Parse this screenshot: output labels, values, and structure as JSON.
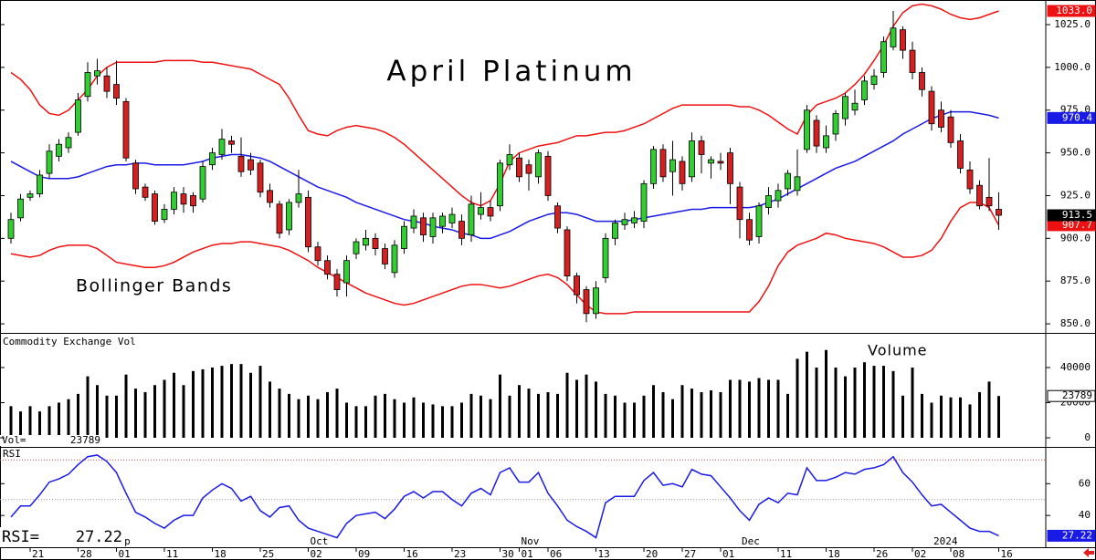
{
  "chart_data": [
    {
      "type": "candlestick",
      "title": "April Platinum",
      "annotation": "Bollinger Bands",
      "categories": [
        null,
        null,
        "21",
        null,
        null,
        null,
        null,
        "28",
        null,
        null,
        null,
        "01",
        null,
        null,
        null,
        null,
        "11",
        null,
        null,
        null,
        null,
        "18",
        null,
        null,
        null,
        null,
        "25",
        null,
        null,
        null,
        null,
        "02",
        null,
        null,
        null,
        null,
        "09",
        null,
        null,
        null,
        null,
        "16",
        null,
        null,
        null,
        null,
        "23",
        null,
        null,
        null,
        null,
        "30",
        null,
        "01",
        null,
        null,
        "06",
        null,
        null,
        null,
        null,
        "13",
        null,
        null,
        null,
        null,
        "20",
        null,
        null,
        null,
        "27",
        null,
        null,
        null,
        "01",
        null,
        null,
        null,
        null,
        null,
        "11",
        null,
        null,
        null,
        null,
        "18",
        null,
        null,
        null,
        null,
        "26",
        null,
        null,
        null,
        "02",
        null,
        null,
        null,
        "08",
        null,
        null,
        null,
        null,
        "16"
      ],
      "months": [
        null,
        null,
        null,
        null,
        null,
        null,
        null,
        null,
        null,
        null,
        null,
        "ep",
        null,
        null,
        null,
        null,
        null,
        null,
        null,
        null,
        null,
        null,
        null,
        null,
        null,
        null,
        null,
        null,
        null,
        null,
        null,
        "Oct",
        null,
        null,
        null,
        null,
        null,
        null,
        null,
        null,
        null,
        null,
        null,
        null,
        null,
        null,
        null,
        null,
        null,
        null,
        null,
        null,
        null,
        "Nov",
        null,
        null,
        null,
        null,
        null,
        null,
        null,
        null,
        null,
        null,
        null,
        null,
        null,
        null,
        null,
        null,
        null,
        null,
        null,
        null,
        null,
        null,
        "Dec",
        null,
        null,
        null,
        null,
        null,
        null,
        null,
        null,
        null,
        null,
        null,
        null,
        null,
        null,
        null,
        null,
        null,
        null,
        null,
        "2024",
        null,
        null,
        null,
        null,
        null,
        null,
        null,
        null,
        null
      ],
      "open": [
        900,
        912,
        924,
        926,
        938,
        948,
        953,
        962,
        983,
        995,
        995,
        990,
        980,
        944,
        930,
        926,
        911,
        917,
        926,
        925,
        923,
        943,
        949,
        957,
        948,
        946,
        944,
        928,
        920,
        905,
        921,
        924,
        895,
        887,
        879,
        874,
        891,
        896,
        900,
        894,
        880,
        894,
        906,
        912,
        901,
        907,
        909,
        910,
        902,
        914,
        918,
        919,
        943,
        947,
        943,
        936,
        948,
        919,
        905,
        878,
        870,
        856,
        877,
        900,
        908,
        909,
        910,
        932,
        952,
        939,
        945,
        936,
        957,
        944,
        945,
        950,
        930,
        911,
        901,
        918,
        922,
        929,
        928,
        952,
        969,
        953,
        961,
        970,
        975,
        981,
        990,
        997,
        1012,
        1022,
        1010,
        997,
        986,
        975,
        971,
        957,
        940,
        931,
        924,
        917
      ],
      "high": [
        915,
        926,
        928,
        940,
        955,
        958,
        962,
        985,
        1003,
        1005,
        1000,
        1004,
        982,
        946,
        932,
        928,
        920,
        930,
        930,
        927,
        945,
        953,
        964,
        960,
        959,
        950,
        946,
        932,
        922,
        923,
        940,
        928,
        898,
        890,
        882,
        890,
        900,
        905,
        903,
        897,
        899,
        910,
        917,
        915,
        915,
        915,
        918,
        914,
        925,
        927,
        922,
        946,
        955,
        950,
        946,
        952,
        951,
        921,
        907,
        880,
        872,
        875,
        903,
        911,
        915,
        916,
        934,
        954,
        955,
        957,
        948,
        962,
        960,
        948,
        950,
        953,
        933,
        915,
        921,
        930,
        932,
        940,
        952,
        978,
        972,
        966,
        975,
        985,
        987,
        995,
        999,
        1018,
        1033,
        1024,
        1015,
        1000,
        989,
        980,
        975,
        961,
        945,
        934,
        947,
        927
      ],
      "low": [
        897,
        910,
        922,
        924,
        935,
        945,
        950,
        960,
        980,
        990,
        982,
        978,
        945,
        926,
        922,
        908,
        909,
        914,
        915,
        915,
        921,
        940,
        946,
        950,
        936,
        937,
        924,
        918,
        900,
        902,
        918,
        892,
        884,
        876,
        866,
        866,
        888,
        893,
        890,
        882,
        877,
        891,
        903,
        898,
        897,
        903,
        906,
        896,
        898,
        911,
        910,
        916,
        940,
        933,
        928,
        932,
        922,
        903,
        875,
        862,
        851,
        853,
        874,
        896,
        905,
        906,
        906,
        929,
        933,
        925,
        928,
        933,
        938,
        935,
        940,
        920,
        900,
        896,
        897,
        914,
        918,
        925,
        925,
        950,
        950,
        950,
        957,
        966,
        972,
        978,
        987,
        994,
        1010,
        1005,
        993,
        983,
        963,
        962,
        953,
        938,
        926,
        917,
        916,
        905
      ],
      "close": [
        911,
        923,
        926,
        937,
        951,
        955,
        959,
        981,
        997,
        998,
        986,
        982,
        947,
        929,
        924,
        910,
        917,
        927,
        920,
        919,
        942,
        950,
        958,
        955,
        939,
        940,
        927,
        921,
        903,
        921,
        926,
        895,
        887,
        879,
        870,
        887,
        898,
        900,
        894,
        885,
        896,
        907,
        913,
        902,
        912,
        913,
        914,
        900,
        920,
        918,
        913,
        944,
        949,
        936,
        938,
        950,
        925,
        906,
        878,
        867,
        856,
        871,
        900,
        909,
        911,
        912,
        932,
        952,
        936,
        946,
        932,
        957,
        949,
        946,
        944,
        932,
        911,
        899,
        919,
        925,
        928,
        938,
        936,
        975,
        954,
        960,
        973,
        983,
        979,
        992,
        995,
        1015,
        1023,
        1010,
        997,
        987,
        967,
        965,
        956,
        941,
        929,
        919,
        919,
        913.5
      ],
      "up_color": "#33cc33",
      "down_color": "#d42020",
      "close_box_color": "#000000",
      "upper_band": {
        "color": "#ee1111",
        "last_label": "1033.0",
        "values": [
          997,
          993,
          987,
          978,
          973,
          972,
          975,
          981,
          987,
          995,
          1000,
          1003,
          1003,
          1003,
          1003,
          1003,
          1004,
          1004,
          1004,
          1004,
          1003,
          1003,
          1002,
          1001,
          1000,
          999,
          996,
          993,
          990,
          982,
          972,
          963,
          961,
          960,
          963,
          965,
          966,
          965,
          964,
          962,
          959,
          955,
          950,
          945,
          940,
          935,
          930,
          925,
          921,
          919,
          922,
          932,
          945,
          950,
          952,
          954,
          955,
          956,
          958,
          960,
          960,
          961,
          962,
          962,
          963,
          965,
          967,
          970,
          973,
          976,
          978,
          978,
          978,
          978,
          978,
          978,
          977,
          977,
          975,
          972,
          968,
          964,
          961,
          972,
          978,
          980,
          982,
          985,
          990,
          996,
          1004,
          1013,
          1024,
          1032,
          1036,
          1037,
          1036,
          1034,
          1031,
          1029,
          1028,
          1029,
          1031,
          1033
        ]
      },
      "middle_band": {
        "color": "#1a1ae6",
        "values": [
          945,
          942,
          939,
          936,
          935,
          935,
          935,
          936,
          938,
          940,
          942,
          943,
          943,
          944,
          944,
          943,
          943,
          943,
          943,
          944,
          945,
          947,
          948,
          949,
          949,
          948,
          947,
          945,
          942,
          939,
          936,
          933,
          930,
          928,
          926,
          924,
          921,
          919,
          917,
          915,
          913,
          911,
          910,
          909,
          907,
          906,
          905,
          903,
          902,
          900,
          900,
          902,
          904,
          907,
          910,
          912,
          914,
          915,
          915,
          914,
          912,
          910,
          910,
          910,
          910,
          911,
          912,
          913,
          914,
          915,
          916,
          917,
          917,
          918,
          918,
          918,
          918,
          918,
          919,
          921,
          923,
          926,
          929,
          932,
          935,
          938,
          941,
          943,
          945,
          948,
          951,
          954,
          957,
          961,
          964,
          967,
          970,
          972,
          974,
          974,
          974,
          973,
          972,
          970.4
        ]
      },
      "lower_band": {
        "color": "#ee1111",
        "values": [
          891,
          890,
          889,
          890,
          893,
          895,
          896,
          896,
          896,
          894,
          890,
          886,
          885,
          884,
          883,
          883,
          884,
          886,
          889,
          892,
          894,
          896,
          897,
          897,
          898,
          898,
          897,
          896,
          895,
          893,
          890,
          887,
          883,
          880,
          877,
          874,
          871,
          868,
          866,
          864,
          862,
          861,
          862,
          864,
          866,
          868,
          870,
          872,
          873,
          873,
          872,
          871,
          872,
          874,
          876,
          878,
          879,
          877,
          873,
          867,
          861,
          857,
          856,
          856,
          856,
          857,
          857,
          857,
          857,
          857,
          857,
          857,
          857,
          857,
          857,
          857,
          857,
          857,
          863,
          872,
          884,
          892,
          896,
          898,
          900,
          903,
          902,
          900,
          899,
          898,
          897,
          895,
          892,
          889,
          889,
          890,
          893,
          900,
          910,
          918,
          921,
          921,
          918,
          907.7
        ]
      },
      "ylim": [
        844.7,
        1039.4
      ],
      "yticks": [
        {
          "value": 1025,
          "label": "1025.0"
        },
        {
          "value": 1000,
          "label": "1000.0"
        },
        {
          "value": 975,
          "label": "975.0"
        },
        {
          "value": 950,
          "label": "950.0"
        },
        {
          "value": 925,
          "label": "925.0"
        },
        {
          "value": 900,
          "label": "900.0"
        },
        {
          "value": 875,
          "label": "875.0"
        },
        {
          "value": 850,
          "label": "850.0"
        }
      ]
    },
    {
      "type": "bar",
      "title": "Commodity Exchange Vol",
      "annotation": "Volume",
      "readout": "Vol=",
      "color": "#000000",
      "values": [
        18000,
        15000,
        18000,
        15000,
        18000,
        20000,
        22000,
        25000,
        35000,
        30000,
        24000,
        24000,
        36000,
        28000,
        26000,
        30000,
        33000,
        37000,
        30000,
        38000,
        39000,
        40000,
        41000,
        42000,
        42000,
        37000,
        41000,
        32000,
        28000,
        25000,
        22000,
        24000,
        22000,
        26000,
        28000,
        20000,
        18000,
        18000,
        24000,
        25000,
        22000,
        20000,
        23000,
        20000,
        19000,
        18000,
        18000,
        20000,
        25000,
        24000,
        22000,
        36000,
        24000,
        30000,
        28000,
        25000,
        26000,
        25000,
        37000,
        33000,
        36000,
        32000,
        25000,
        24000,
        20000,
        20000,
        24000,
        30000,
        26000,
        22000,
        30000,
        28000,
        26000,
        27000,
        26000,
        33000,
        33000,
        32000,
        34000,
        33000,
        33000,
        25000,
        45000,
        49000,
        40000,
        50000,
        40000,
        35000,
        40000,
        43000,
        41000,
        41000,
        38000,
        24000,
        40000,
        25000,
        20000,
        24000,
        23000,
        23000,
        19000,
        26000,
        32000,
        23789
      ],
      "ylim": [
        -5200,
        58700
      ],
      "yticks": [
        0,
        20000,
        40000
      ]
    },
    {
      "type": "line",
      "title": "RSI",
      "readout": "RSI=",
      "color": "#1a1ae6",
      "values": [
        39,
        46,
        46,
        53,
        61,
        63,
        66,
        72,
        77,
        78,
        74,
        67,
        54,
        42,
        39,
        35,
        32,
        37,
        40,
        40,
        51,
        56,
        60,
        57,
        49,
        52,
        43,
        39,
        45,
        46,
        37,
        32,
        30,
        28,
        26,
        35,
        40,
        41,
        42,
        38,
        44,
        52,
        55,
        51,
        55,
        55,
        50,
        46,
        54,
        57,
        53,
        67,
        70,
        61,
        61,
        67,
        54,
        46,
        37,
        33,
        30,
        26,
        48,
        52,
        52,
        52,
        62,
        67,
        59,
        60,
        58,
        69,
        66,
        65,
        58,
        51,
        43,
        37,
        47,
        51,
        48,
        54,
        53,
        70,
        62,
        62,
        64,
        67,
        66,
        69,
        70,
        72,
        77,
        67,
        61,
        53,
        46,
        47,
        42,
        37,
        32,
        30,
        30,
        27.22
      ],
      "ylim": [
        20,
        82
      ],
      "yticks": [
        40,
        60
      ],
      "levels": [
        {
          "value": 75,
          "color": "#e04040"
        },
        {
          "value": 50,
          "color": "#999999"
        }
      ]
    }
  ]
}
